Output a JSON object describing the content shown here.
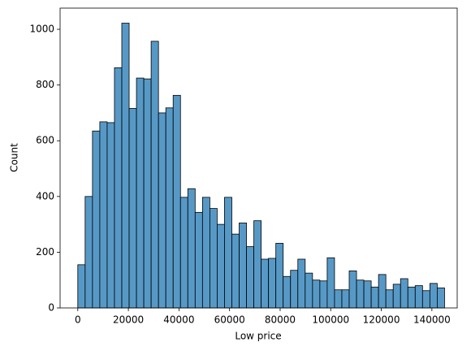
{
  "chart_data": {
    "type": "histogram",
    "xlabel": "Low price",
    "ylabel": "Count",
    "color": "#5799c6",
    "edgecolor": "#000000",
    "bins": [
      0,
      2900,
      5800,
      8700,
      11600,
      14500,
      17400,
      20300,
      23200,
      26100,
      29000,
      31900,
      34800,
      37700,
      40600,
      43500,
      46400,
      49300,
      52200,
      55100,
      58000,
      60900,
      63800,
      66700,
      69600,
      72500,
      75400,
      78300,
      81200,
      84100,
      87000,
      89900,
      92800,
      95700,
      98600,
      101500,
      104400,
      107300,
      110200,
      113100,
      116000,
      118900,
      121800,
      124700,
      127600,
      130500,
      133400,
      136300,
      139200,
      142100,
      145000
    ],
    "values": [
      155,
      400,
      635,
      668,
      665,
      862,
      1022,
      716,
      825,
      822,
      957,
      700,
      718,
      763,
      397,
      428,
      343,
      397,
      357,
      300,
      397,
      265,
      305,
      220,
      313,
      175,
      178,
      232,
      113,
      135,
      175,
      125,
      100,
      97,
      180,
      65,
      65,
      133,
      100,
      97,
      75,
      120,
      65,
      85,
      105,
      75,
      80,
      62,
      88,
      72
    ],
    "xlim": [
      -7000,
      150000
    ],
    "ylim": [
      0,
      1076
    ],
    "xticks": [
      0,
      20000,
      40000,
      60000,
      80000,
      100000,
      120000,
      140000
    ],
    "yticks": [
      0,
      200,
      400,
      600,
      800,
      1000
    ]
  }
}
